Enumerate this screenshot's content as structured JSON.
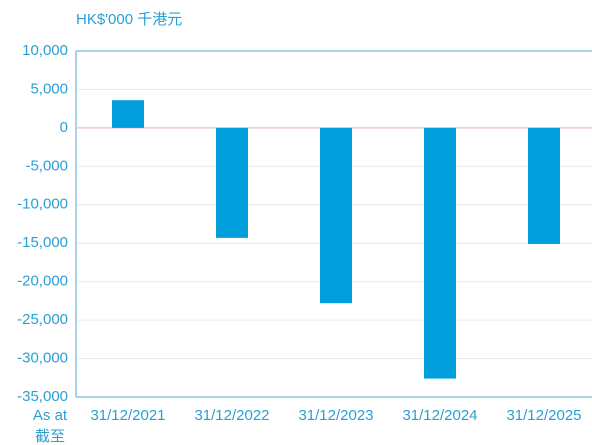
{
  "chart_data": {
    "type": "bar",
    "unit_label": "HK$'000 千港元",
    "xlabel": [
      "As at",
      "截至"
    ],
    "categories": [
      "31/12/2021",
      "31/12/2022",
      "31/12/2023",
      "31/12/2024",
      "31/12/2025"
    ],
    "values": [
      3600,
      -14300,
      -22800,
      -32600,
      -15100
    ],
    "color": "#009edb",
    "ylim": [
      -35000,
      10000
    ],
    "yticks": [
      {
        "value": 10000,
        "label": "10,000"
      },
      {
        "value": 5000,
        "label": "5,000"
      },
      0,
      {
        "value": -5000,
        "label": "-5,000"
      },
      {
        "value": -10000,
        "label": "-10,000"
      },
      {
        "value": -15000,
        "label": "-15,000"
      },
      {
        "value": -20000,
        "label": "-20,000"
      },
      {
        "value": -25000,
        "label": "-25,000"
      },
      {
        "value": -30000,
        "label": "-30,000"
      },
      {
        "value": -35000,
        "label": "-35,000"
      }
    ],
    "grid": true
  }
}
